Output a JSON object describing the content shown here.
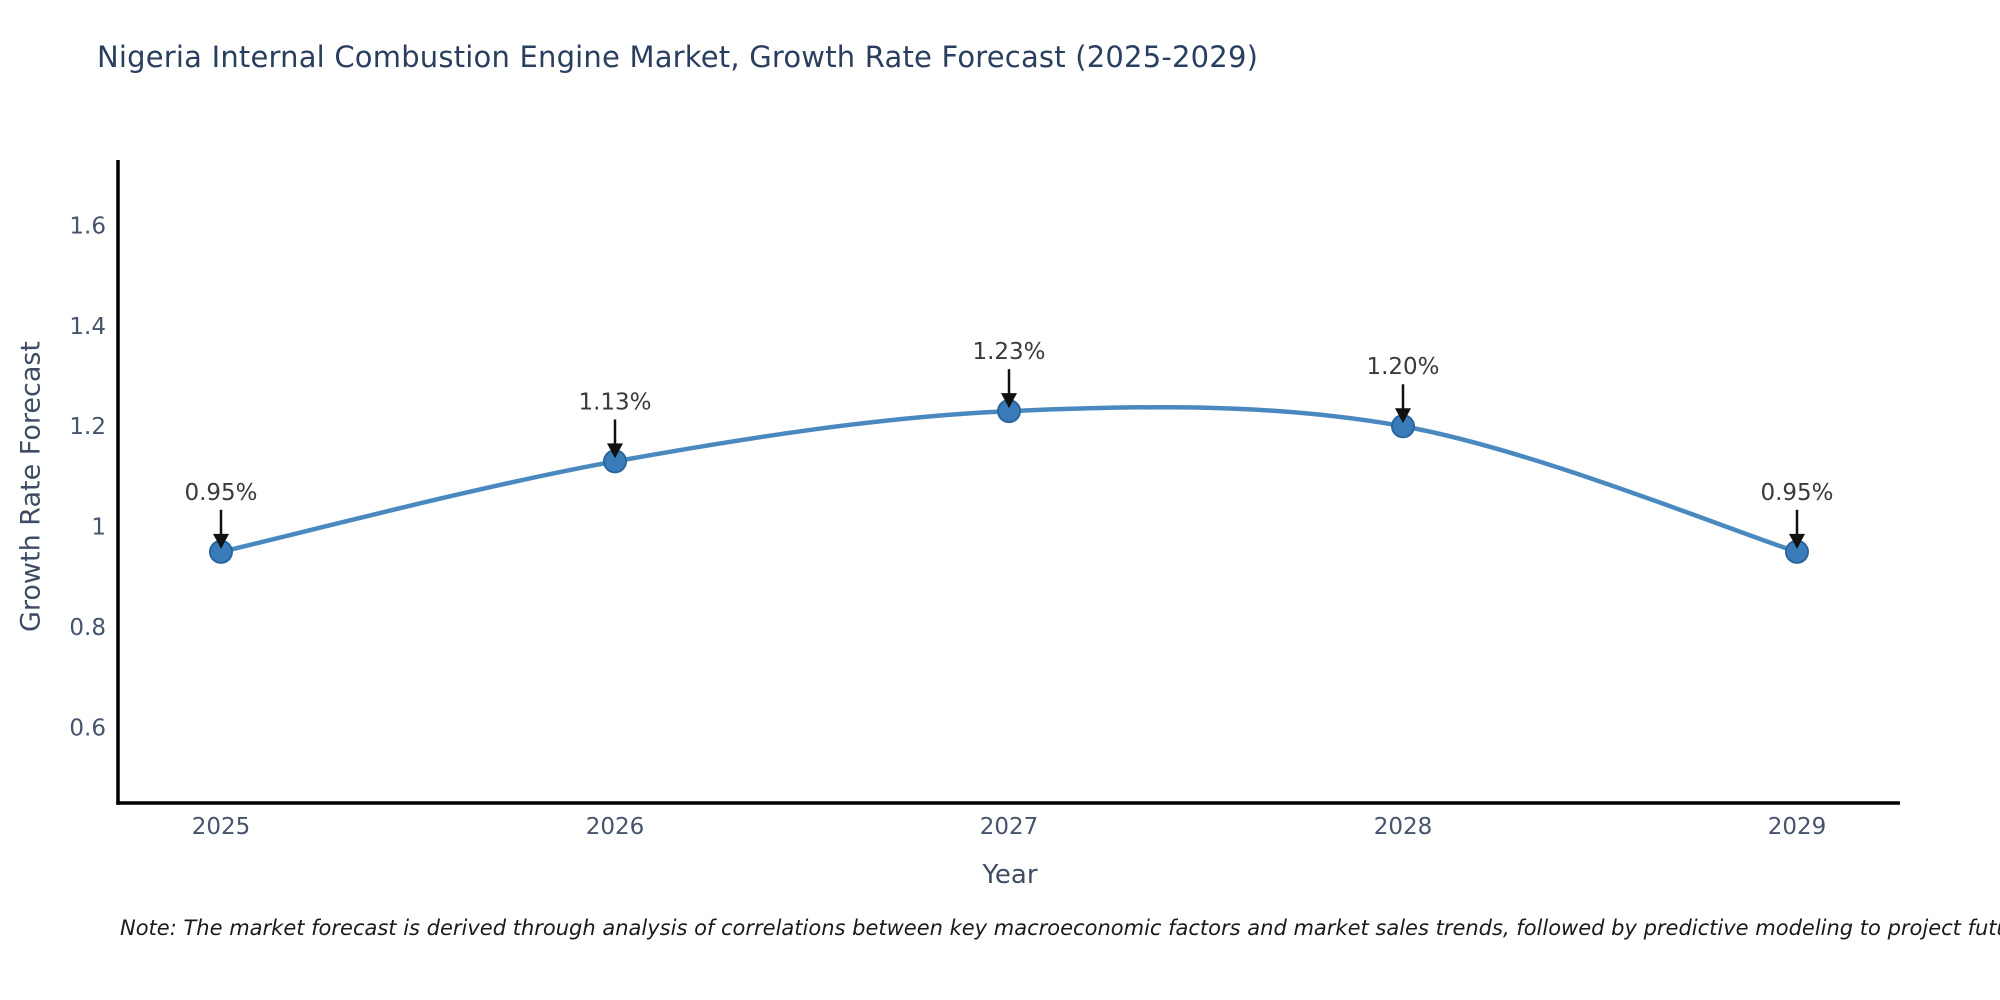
{
  "chart_data": {
    "type": "line",
    "title": "Nigeria Internal Combustion Engine Market, Growth Rate Forecast (2025-2029)",
    "xlabel": "Year",
    "ylabel": "Growth Rate Forecast",
    "x": [
      2025,
      2026,
      2027,
      2028,
      2029
    ],
    "x_tick_labels": [
      "2025",
      "2026",
      "2027",
      "2028",
      "2029"
    ],
    "values": [
      0.95,
      1.13,
      1.23,
      1.2,
      0.95
    ],
    "point_labels": [
      "0.95%",
      "1.13%",
      "1.23%",
      "1.20%",
      "0.95%"
    ],
    "y_ticks": [
      1.6,
      1.4,
      1.2,
      1.0,
      0.8,
      0.6
    ],
    "y_tick_labels": [
      "1.6",
      "1.4",
      "1.2",
      "1",
      "0.8",
      "0.6"
    ],
    "ylim": [
      0.45,
      1.73
    ],
    "smooth": true,
    "grid": false,
    "legend": false,
    "line_color": "#4a89c0",
    "marker_color": "#3a7cba",
    "marker_edge_color": "#2a659c",
    "axis_color": "#000000",
    "arrow_color": "#111111"
  },
  "footnote": "Note: The market forecast is derived through analysis of correlations between key macroeconomic factors and market sales trends, followed by predictive modeling to project future sales"
}
